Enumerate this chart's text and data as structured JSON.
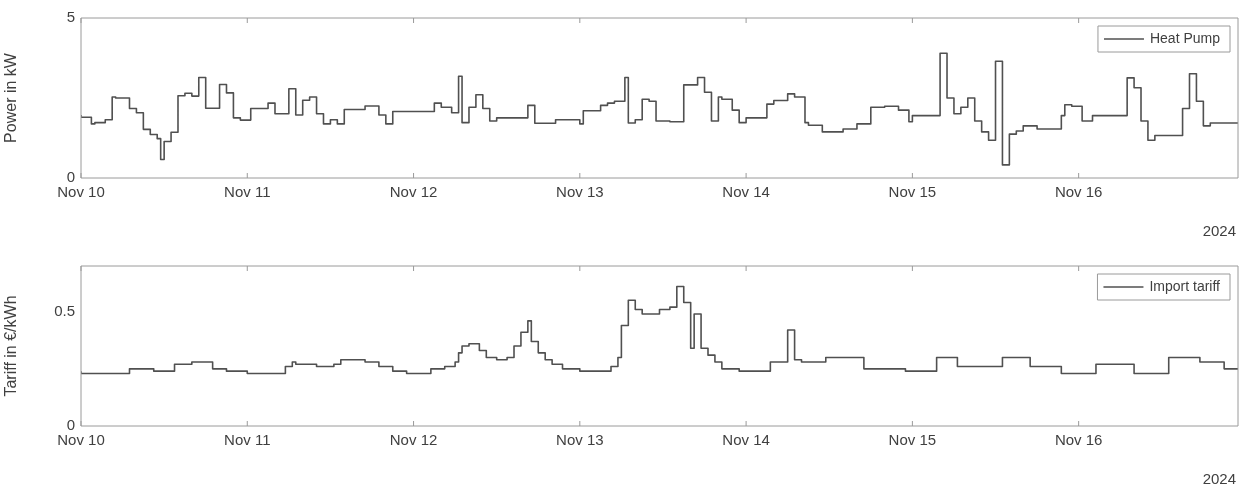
{
  "chart_data": [
    {
      "type": "step",
      "ylabel": "Power in kW",
      "ylim": [
        0,
        5
      ],
      "yticks": [
        0,
        5
      ],
      "xlim": [
        "2024-11-10T00:00",
        "2024-11-16T23:00"
      ],
      "xticks": [
        {
          "value": "2024-11-10",
          "label": "Nov 10"
        },
        {
          "value": "2024-11-11",
          "label": "Nov 11"
        },
        {
          "value": "2024-11-12",
          "label": "Nov 12"
        },
        {
          "value": "2024-11-13",
          "label": "Nov 13"
        },
        {
          "value": "2024-11-14",
          "label": "Nov 14"
        },
        {
          "value": "2024-11-15",
          "label": "Nov 15"
        },
        {
          "value": "2024-11-16",
          "label": "Nov 16"
        }
      ],
      "legend": "top right",
      "annotations": [
        "2024"
      ],
      "x": [
        "2024-11-10T00:00",
        "2024-11-10T01:30",
        "2024-11-10T02:00",
        "2024-11-10T03:30",
        "2024-11-10T04:30",
        "2024-11-10T05:00",
        "2024-11-10T07:00",
        "2024-11-10T08:00",
        "2024-11-10T09:00",
        "2024-11-10T10:00",
        "2024-11-10T11:00",
        "2024-11-10T11:30",
        "2024-11-10T12:00",
        "2024-11-10T13:00",
        "2024-11-10T14:00",
        "2024-11-10T15:00",
        "2024-11-10T16:00",
        "2024-11-10T17:00",
        "2024-11-10T18:00",
        "2024-11-10T20:00",
        "2024-11-10T21:00",
        "2024-11-10T22:00",
        "2024-11-10T23:00",
        "2024-11-11T00:30",
        "2024-11-11T03:00",
        "2024-11-11T04:00",
        "2024-11-11T06:00",
        "2024-11-11T07:00",
        "2024-11-11T08:00",
        "2024-11-11T09:00",
        "2024-11-11T10:00",
        "2024-11-11T11:00",
        "2024-11-11T12:00",
        "2024-11-11T13:00",
        "2024-11-11T14:00",
        "2024-11-11T17:00",
        "2024-11-11T19:00",
        "2024-11-11T20:00",
        "2024-11-11T21:00",
        "2024-11-12T03:00",
        "2024-11-12T04:00",
        "2024-11-12T05:30",
        "2024-11-12T06:30",
        "2024-11-12T07:00",
        "2024-11-12T08:00",
        "2024-11-12T09:00",
        "2024-11-12T10:00",
        "2024-11-12T11:00",
        "2024-11-12T12:00",
        "2024-11-12T16:30",
        "2024-11-12T17:30",
        "2024-11-12T20:30",
        "2024-11-13T00:00",
        "2024-11-13T00:30",
        "2024-11-13T03:00",
        "2024-11-13T04:00",
        "2024-11-13T05:00",
        "2024-11-13T06:30",
        "2024-11-13T07:00",
        "2024-11-13T08:00",
        "2024-11-13T09:00",
        "2024-11-13T10:00",
        "2024-11-13T11:00",
        "2024-11-13T13:00",
        "2024-11-13T15:00",
        "2024-11-13T17:00",
        "2024-11-13T18:00",
        "2024-11-13T19:00",
        "2024-11-13T20:00",
        "2024-11-13T20:30",
        "2024-11-13T22:00",
        "2024-11-13T23:00",
        "2024-11-14T00:00",
        "2024-11-14T03:00",
        "2024-11-14T04:00",
        "2024-11-14T06:00",
        "2024-11-14T07:00",
        "2024-11-14T08:30",
        "2024-11-14T09:00",
        "2024-11-14T11:00",
        "2024-11-14T14:00",
        "2024-11-14T16:00",
        "2024-11-14T18:00",
        "2024-11-14T20:00",
        "2024-11-14T22:00",
        "2024-11-14T23:30",
        "2024-11-15T00:00",
        "2024-11-15T04:00",
        "2024-11-15T05:00",
        "2024-11-15T06:00",
        "2024-11-15T07:00",
        "2024-11-15T08:00",
        "2024-11-15T09:00",
        "2024-11-15T10:00",
        "2024-11-15T11:00",
        "2024-11-15T12:00",
        "2024-11-15T13:00",
        "2024-11-15T14:00",
        "2024-11-15T15:00",
        "2024-11-15T16:00",
        "2024-11-15T18:00",
        "2024-11-15T21:30",
        "2024-11-15T22:00",
        "2024-11-15T23:00",
        "2024-11-16T00:30",
        "2024-11-16T02:00",
        "2024-11-16T07:00",
        "2024-11-16T08:00",
        "2024-11-16T09:00",
        "2024-11-16T10:00",
        "2024-11-16T11:00",
        "2024-11-16T15:00",
        "2024-11-16T16:00",
        "2024-11-16T17:00",
        "2024-11-16T18:00",
        "2024-11-16T19:00",
        "2024-11-16T22:30",
        "2024-11-16T23:00"
      ],
      "series": [
        {
          "name": "Heat Pump",
          "color": "#505050",
          "values": [
            1.97,
            1.9,
            1.69,
            1.73,
            1.82,
            2.53,
            2.5,
            2.17,
            2.04,
            1.52,
            1.36,
            1.23,
            0.58,
            1.14,
            1.43,
            2.57,
            2.65,
            2.56,
            3.14,
            2.18,
            2.92,
            2.66,
            1.88,
            1.81,
            2.17,
            2.34,
            2.01,
            2.79,
            1.97,
            2.43,
            2.53,
            2.01,
            1.69,
            1.82,
            1.69,
            2.14,
            2.25,
            1.97,
            1.69,
            2.08,
            2.34,
            2.21,
            2.04,
            3.18,
            1.73,
            2.21,
            2.6,
            2.17,
            1.78,
            1.88,
            2.27,
            1.71,
            1.82,
            1.69,
            2.1,
            2.27,
            2.34,
            2.4,
            3.14,
            1.72,
            1.82,
            2.46,
            2.4,
            1.78,
            1.76,
            2.91,
            3.14,
            2.68,
            1.78,
            2.53,
            2.46,
            2.12,
            1.73,
            1.88,
            2.31,
            2.42,
            2.63,
            2.53,
            1.73,
            1.65,
            1.44,
            1.53,
            1.69,
            2.21,
            2.24,
            2.12,
            1.76,
            1.95,
            3.9,
            2.5,
            2.01,
            2.21,
            2.5,
            1.78,
            1.44,
            1.18,
            3.65,
            0.41,
            1.37,
            1.47,
            1.63,
            1.53,
            1.95,
            2.29,
            2.24,
            1.78,
            1.95,
            3.13,
            2.82,
            1.78,
            1.18,
            1.33,
            2.17,
            3.26,
            2.4,
            1.63,
            1.72,
            1.72
          ]
        }
      ]
    },
    {
      "type": "step",
      "ylabel": "Tariff in €/kWh",
      "ylim": [
        0,
        0.7
      ],
      "yticks": [
        0,
        0.5
      ],
      "xlim": [
        "2024-11-10T00:00",
        "2024-11-16T23:00"
      ],
      "xticks": [
        {
          "value": "2024-11-10",
          "label": "Nov 10"
        },
        {
          "value": "2024-11-11",
          "label": "Nov 11"
        },
        {
          "value": "2024-11-12",
          "label": "Nov 12"
        },
        {
          "value": "2024-11-13",
          "label": "Nov 13"
        },
        {
          "value": "2024-11-14",
          "label": "Nov 14"
        },
        {
          "value": "2024-11-15",
          "label": "Nov 15"
        },
        {
          "value": "2024-11-16",
          "label": "Nov 16"
        }
      ],
      "legend": "top right",
      "annotations": [
        "2024"
      ],
      "x": [
        "2024-11-10T00:00",
        "2024-11-10T07:00",
        "2024-11-10T10:30",
        "2024-11-10T13:30",
        "2024-11-10T16:00",
        "2024-11-10T17:30",
        "2024-11-10T19:00",
        "2024-11-10T21:00",
        "2024-11-11T00:00",
        "2024-11-11T02:30",
        "2024-11-11T05:30",
        "2024-11-11T06:30",
        "2024-11-11T07:00",
        "2024-11-11T10:00",
        "2024-11-11T12:30",
        "2024-11-11T13:30",
        "2024-11-11T17:00",
        "2024-11-11T19:00",
        "2024-11-11T21:00",
        "2024-11-11T23:00",
        "2024-11-12T02:30",
        "2024-11-12T04:30",
        "2024-11-12T06:00",
        "2024-11-12T06:30",
        "2024-11-12T07:00",
        "2024-11-12T08:00",
        "2024-11-12T09:30",
        "2024-11-12T10:30",
        "2024-11-12T12:00",
        "2024-11-12T13:30",
        "2024-11-12T14:30",
        "2024-11-12T15:30",
        "2024-11-12T16:30",
        "2024-11-12T17:00",
        "2024-11-12T18:00",
        "2024-11-12T19:00",
        "2024-11-12T20:00",
        "2024-11-12T21:30",
        "2024-11-13T00:00",
        "2024-11-13T02:00",
        "2024-11-13T04:30",
        "2024-11-13T05:30",
        "2024-11-13T06:00",
        "2024-11-13T07:00",
        "2024-11-13T08:00",
        "2024-11-13T09:00",
        "2024-11-13T11:30",
        "2024-11-13T13:00",
        "2024-11-13T14:00",
        "2024-11-13T15:00",
        "2024-11-13T16:00",
        "2024-11-13T16:30",
        "2024-11-13T17:30",
        "2024-11-13T18:30",
        "2024-11-13T19:30",
        "2024-11-13T20:30",
        "2024-11-13T23:00",
        "2024-11-14T03:30",
        "2024-11-14T06:00",
        "2024-11-14T07:00",
        "2024-11-14T08:00",
        "2024-11-14T11:30",
        "2024-11-14T17:00",
        "2024-11-14T23:00",
        "2024-11-15T03:30",
        "2024-11-15T06:30",
        "2024-11-15T13:00",
        "2024-11-15T17:00",
        "2024-11-15T21:30",
        "2024-11-16T02:30",
        "2024-11-16T08:00",
        "2024-11-16T13:00",
        "2024-11-16T17:30",
        "2024-11-16T21:00",
        "2024-11-16T22:30",
        "2024-11-16T23:00"
      ],
      "series": [
        {
          "name": "Import tariff",
          "color": "#505050",
          "values": [
            0.24,
            0.23,
            0.25,
            0.24,
            0.27,
            0.28,
            0.28,
            0.25,
            0.24,
            0.23,
            0.23,
            0.26,
            0.28,
            0.27,
            0.26,
            0.27,
            0.29,
            0.28,
            0.26,
            0.24,
            0.23,
            0.25,
            0.26,
            0.28,
            0.32,
            0.35,
            0.36,
            0.33,
            0.3,
            0.29,
            0.3,
            0.35,
            0.41,
            0.46,
            0.37,
            0.32,
            0.29,
            0.27,
            0.25,
            0.24,
            0.24,
            0.26,
            0.3,
            0.44,
            0.55,
            0.51,
            0.49,
            0.51,
            0.52,
            0.61,
            0.54,
            0.34,
            0.49,
            0.34,
            0.31,
            0.28,
            0.25,
            0.24,
            0.28,
            0.42,
            0.29,
            0.28,
            0.3,
            0.25,
            0.24,
            0.3,
            0.26,
            0.3,
            0.26,
            0.23,
            0.27,
            0.23,
            0.3,
            0.28,
            0.25,
            0.25
          ]
        }
      ]
    }
  ]
}
